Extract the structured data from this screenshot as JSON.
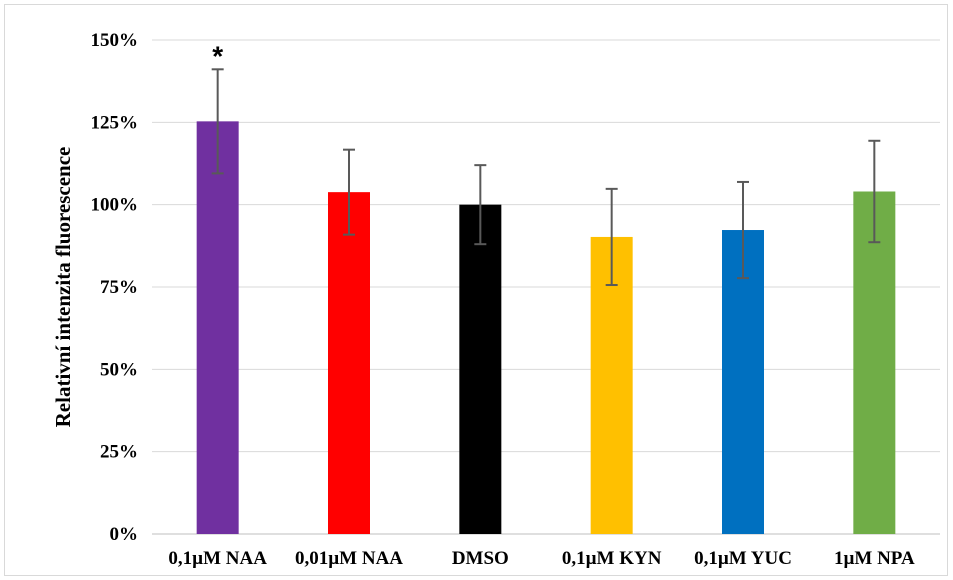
{
  "chart_data": {
    "type": "bar",
    "title": "",
    "xlabel": "",
    "ylabel": "Relativní intenzita fluorescence",
    "ylim": [
      0,
      150
    ],
    "yticks": [
      "0%",
      "25%",
      "50%",
      "75%",
      "100%",
      "125%",
      "150%"
    ],
    "grid": true,
    "categories": [
      "0,1µM NAA",
      "0,01µM NAA",
      "DMSO",
      "0,1µM KYN",
      "0,1µM YUC",
      "1µM NPA"
    ],
    "values": [
      125.3,
      103.8,
      100.0,
      90.2,
      92.3,
      104.0
    ],
    "error": [
      15.8,
      12.9,
      12.0,
      14.6,
      14.6,
      15.4
    ],
    "colors": [
      "#7030a0",
      "#ff0000",
      "#000000",
      "#ffc000",
      "#0070c0",
      "#70ad47"
    ],
    "annotations": [
      {
        "category": "0,1µM NAA",
        "text": "*"
      }
    ]
  }
}
